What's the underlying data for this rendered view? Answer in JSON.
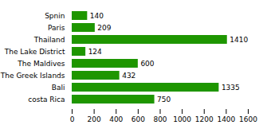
{
  "chart_data": {
    "type": "bar",
    "orientation": "horizontal",
    "categories": [
      "Spnin",
      "Paris",
      "Thailand",
      "The Lake District",
      "The Maldives",
      "The Greek Islands",
      "Bali",
      "costa Rica"
    ],
    "values": [
      140,
      209,
      1410,
      124,
      600,
      432,
      1335,
      750
    ],
    "color": "#1e9600",
    "xlim": [
      0,
      1600
    ],
    "xticks": [
      0,
      200,
      400,
      600,
      800,
      1000,
      1200,
      1400,
      1600
    ],
    "grid": false,
    "data_labels": true
  }
}
